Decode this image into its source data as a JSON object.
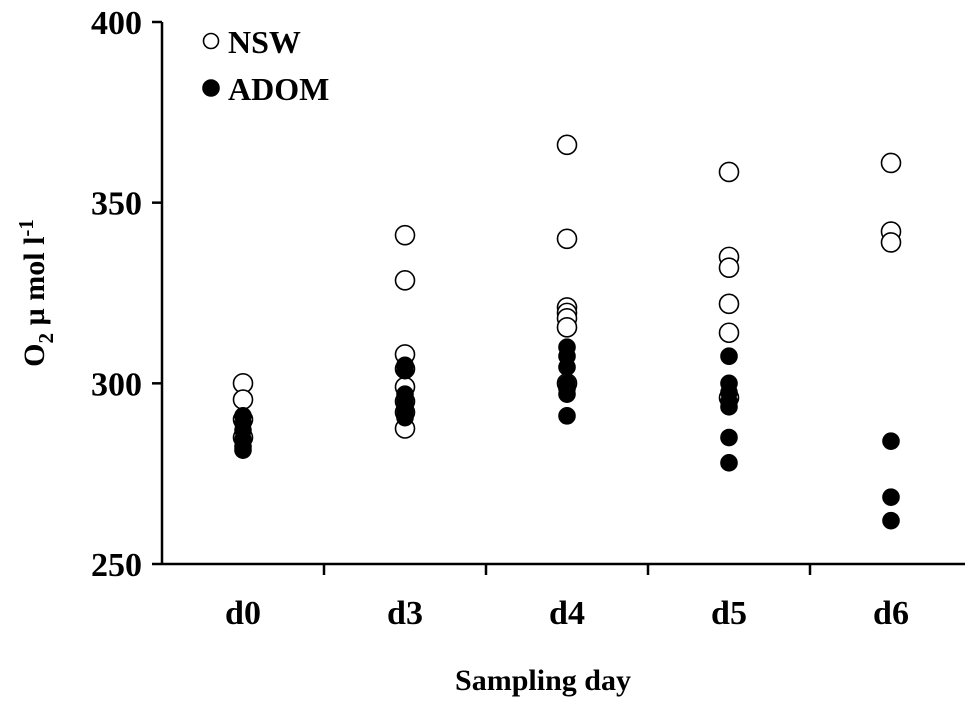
{
  "chart_data": {
    "type": "scatter",
    "categories": [
      "d0",
      "d3",
      "d4",
      "d5",
      "d6"
    ],
    "xlabel": "Sampling day",
    "ylabel_main": "O",
    "ylabel_sub": "2",
    "ylabel_mid": " µ mol l",
    "ylabel_sup": "-1",
    "ylim": [
      250,
      400
    ],
    "yticks": [
      250,
      300,
      350,
      400
    ],
    "grid": false,
    "legend_position": "top-left",
    "series": [
      {
        "name": "NSW",
        "marker": "open-circle",
        "color": "#000000",
        "points": [
          {
            "x": "d0",
            "y": 300
          },
          {
            "x": "d0",
            "y": 295.5
          },
          {
            "x": "d0",
            "y": 290
          },
          {
            "x": "d0",
            "y": 285
          },
          {
            "x": "d3",
            "y": 341
          },
          {
            "x": "d3",
            "y": 328.5
          },
          {
            "x": "d3",
            "y": 308
          },
          {
            "x": "d3",
            "y": 304
          },
          {
            "x": "d3",
            "y": 299
          },
          {
            "x": "d3",
            "y": 295
          },
          {
            "x": "d3",
            "y": 292
          },
          {
            "x": "d3",
            "y": 287.5
          },
          {
            "x": "d4",
            "y": 366
          },
          {
            "x": "d4",
            "y": 340
          },
          {
            "x": "d4",
            "y": 321
          },
          {
            "x": "d4",
            "y": 319.5
          },
          {
            "x": "d4",
            "y": 318
          },
          {
            "x": "d4",
            "y": 315.5
          },
          {
            "x": "d4",
            "y": 300
          },
          {
            "x": "d5",
            "y": 358.5
          },
          {
            "x": "d5",
            "y": 335
          },
          {
            "x": "d5",
            "y": 332
          },
          {
            "x": "d5",
            "y": 322
          },
          {
            "x": "d5",
            "y": 314
          },
          {
            "x": "d5",
            "y": 296
          },
          {
            "x": "d6",
            "y": 361
          },
          {
            "x": "d6",
            "y": 342
          },
          {
            "x": "d6",
            "y": 339
          }
        ]
      },
      {
        "name": "ADOM",
        "marker": "filled-circle",
        "color": "#000000",
        "points": [
          {
            "x": "d0",
            "y": 291
          },
          {
            "x": "d0",
            "y": 289
          },
          {
            "x": "d0",
            "y": 287
          },
          {
            "x": "d0",
            "y": 284.5
          },
          {
            "x": "d0",
            "y": 282.5
          },
          {
            "x": "d0",
            "y": 281.5
          },
          {
            "x": "d3",
            "y": 305
          },
          {
            "x": "d3",
            "y": 303.5
          },
          {
            "x": "d3",
            "y": 297
          },
          {
            "x": "d3",
            "y": 295
          },
          {
            "x": "d3",
            "y": 294
          },
          {
            "x": "d3",
            "y": 292
          },
          {
            "x": "d3",
            "y": 290.5
          },
          {
            "x": "d4",
            "y": 310
          },
          {
            "x": "d4",
            "y": 307.5
          },
          {
            "x": "d4",
            "y": 304.5
          },
          {
            "x": "d4",
            "y": 300
          },
          {
            "x": "d4",
            "y": 298.5
          },
          {
            "x": "d4",
            "y": 297
          },
          {
            "x": "d4",
            "y": 291
          },
          {
            "x": "d5",
            "y": 307.5
          },
          {
            "x": "d5",
            "y": 300
          },
          {
            "x": "d5",
            "y": 297.5
          },
          {
            "x": "d5",
            "y": 295
          },
          {
            "x": "d5",
            "y": 293.5
          },
          {
            "x": "d5",
            "y": 285
          },
          {
            "x": "d5",
            "y": 278
          },
          {
            "x": "d6",
            "y": 284
          },
          {
            "x": "d6",
            "y": 268.5
          },
          {
            "x": "d6",
            "y": 262
          }
        ]
      }
    ]
  }
}
